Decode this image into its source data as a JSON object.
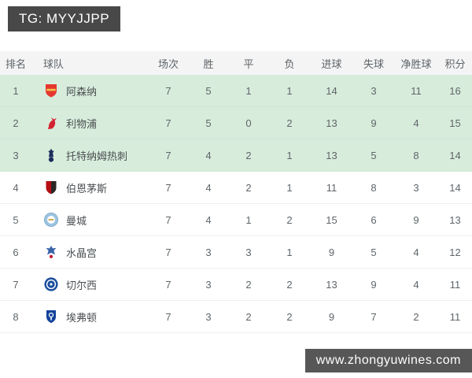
{
  "top_banner": {
    "text": "TG: MYYJJPP",
    "bg": "#484848",
    "fg": "#ffffff"
  },
  "bottom_banner": {
    "text": "www.zhongyuwines.com",
    "bg": "#575757",
    "fg": "#ffffff"
  },
  "table": {
    "columns": [
      "排名",
      "球队",
      "场次",
      "胜",
      "平",
      "负",
      "进球",
      "失球",
      "净胜球",
      "积分"
    ],
    "highlight_color": "#d8ecdc",
    "rows": [
      {
        "rank": "1",
        "team": "阿森纳",
        "badge": "arsenal",
        "badge_colors": {
          "primary": "#e4372f",
          "secondary": "#f2c14a"
        },
        "played": "7",
        "won": "5",
        "drawn": "1",
        "lost": "1",
        "goals_for": "14",
        "goals_against": "3",
        "goal_diff": "11",
        "points": "16",
        "highlight": true
      },
      {
        "rank": "2",
        "team": "利物浦",
        "badge": "liverpool",
        "badge_colors": {
          "primary": "#d32431",
          "secondary": "#d32431"
        },
        "played": "7",
        "won": "5",
        "drawn": "0",
        "lost": "2",
        "goals_for": "13",
        "goals_against": "9",
        "goal_diff": "4",
        "points": "15",
        "highlight": true
      },
      {
        "rank": "3",
        "team": "托特纳姆热刺",
        "badge": "tottenham",
        "badge_colors": {
          "primary": "#1b2d5c",
          "secondary": "#1b2d5c"
        },
        "played": "7",
        "won": "4",
        "drawn": "2",
        "lost": "1",
        "goals_for": "13",
        "goals_against": "5",
        "goal_diff": "8",
        "points": "14",
        "highlight": true
      },
      {
        "rank": "4",
        "team": "伯恩茅斯",
        "badge": "bournemouth",
        "badge_colors": {
          "primary": "#b50e12",
          "secondary": "#2b2626"
        },
        "played": "7",
        "won": "4",
        "drawn": "2",
        "lost": "1",
        "goals_for": "11",
        "goals_against": "8",
        "goal_diff": "3",
        "points": "14",
        "highlight": false
      },
      {
        "rank": "5",
        "team": "曼城",
        "badge": "mancity",
        "badge_colors": {
          "primary": "#9bc4e2",
          "secondary": "#ffffff"
        },
        "played": "7",
        "won": "4",
        "drawn": "1",
        "lost": "2",
        "goals_for": "15",
        "goals_against": "6",
        "goal_diff": "9",
        "points": "13",
        "highlight": false
      },
      {
        "rank": "6",
        "team": "水晶宫",
        "badge": "palace",
        "badge_colors": {
          "primary": "#3a64a8",
          "secondary": "#c4122e"
        },
        "played": "7",
        "won": "3",
        "drawn": "3",
        "lost": "1",
        "goals_for": "9",
        "goals_against": "5",
        "goal_diff": "4",
        "points": "12",
        "highlight": false
      },
      {
        "rank": "7",
        "team": "切尔西",
        "badge": "chelsea",
        "badge_colors": {
          "primary": "#1c4e9d",
          "secondary": "#ffffff"
        },
        "played": "7",
        "won": "3",
        "drawn": "2",
        "lost": "2",
        "goals_for": "13",
        "goals_against": "9",
        "goal_diff": "4",
        "points": "11",
        "highlight": false
      },
      {
        "rank": "8",
        "team": "埃弗顿",
        "badge": "everton",
        "badge_colors": {
          "primary": "#15439c",
          "secondary": "#ffffff"
        },
        "played": "7",
        "won": "3",
        "drawn": "2",
        "lost": "2",
        "goals_for": "9",
        "goals_against": "7",
        "goal_diff": "2",
        "points": "11",
        "highlight": false
      }
    ]
  }
}
